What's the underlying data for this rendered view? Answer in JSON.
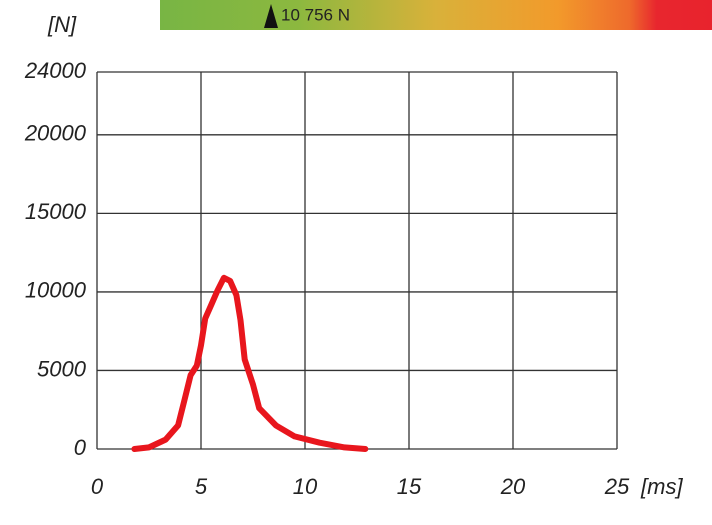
{
  "chart_data": {
    "type": "line",
    "gauge_label": "10 756 N",
    "ylabel": "[N]",
    "xlabel": "[ms]",
    "x": [
      1.8,
      2.5,
      3.3,
      3.9,
      4.2,
      4.5,
      4.8,
      5.0,
      5.2,
      5.5,
      5.8,
      6.1,
      6.4,
      6.7,
      6.9,
      7.1,
      7.5,
      7.8,
      8.6,
      9.5,
      10.7,
      11.9,
      12.9
    ],
    "values": [
      0,
      100,
      600,
      1500,
      3100,
      4700,
      5300,
      6600,
      8300,
      9200,
      10100,
      10900,
      10700,
      9800,
      8200,
      5700,
      4100,
      2600,
      1500,
      800,
      400,
      100,
      0
    ],
    "color": "#e8161d",
    "xlim": [
      0,
      25
    ],
    "xticks": [
      0,
      5,
      10,
      15,
      20,
      25
    ],
    "ylim": [
      0,
      24000
    ],
    "yticks": [
      0,
      5000,
      10000,
      15000,
      20000,
      24000
    ],
    "grid": true
  }
}
